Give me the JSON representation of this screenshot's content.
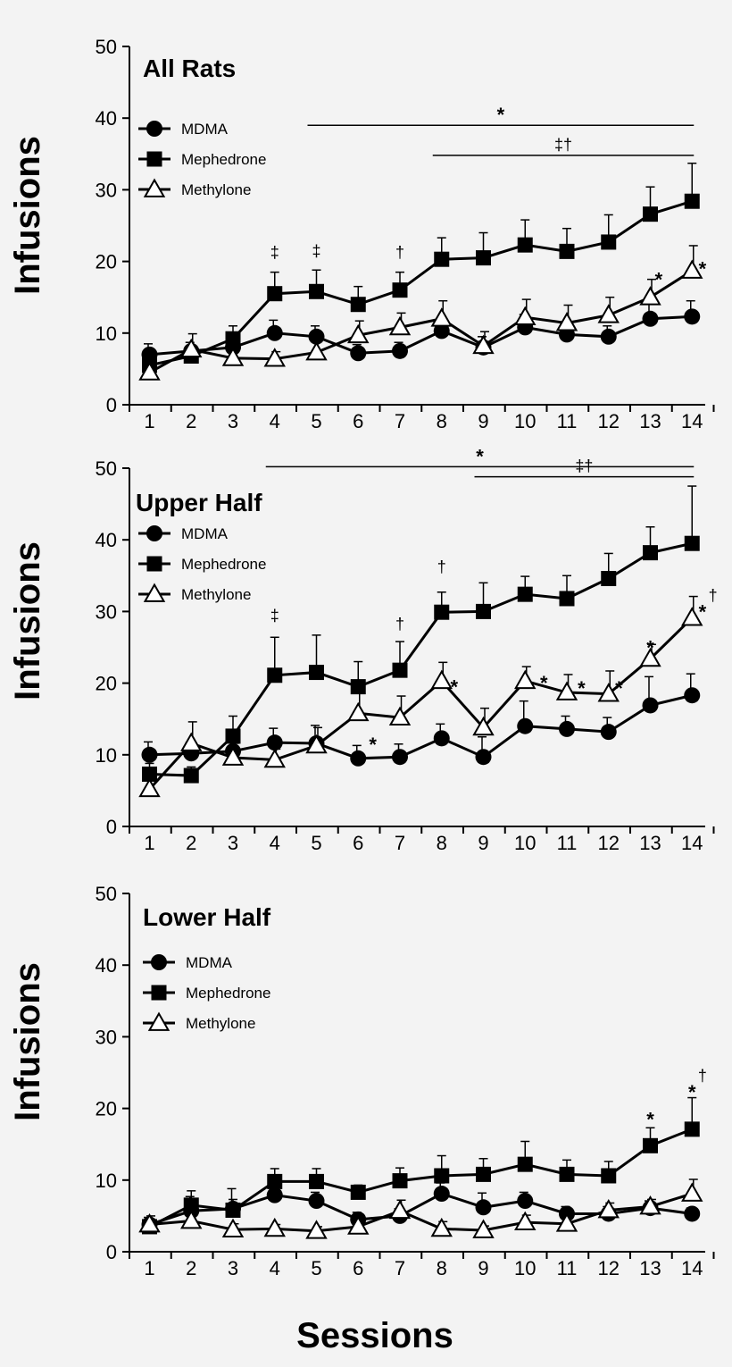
{
  "x_label": "Sessions",
  "y_label": "Infusions",
  "chart_data": [
    {
      "type": "line",
      "title": "All Rats",
      "xlabel": "Sessions",
      "ylabel": "Infusions",
      "ylim": [
        0,
        50
      ],
      "yticks": [
        0,
        10,
        20,
        30,
        40,
        50
      ],
      "x": [
        1,
        2,
        3,
        4,
        5,
        6,
        7,
        8,
        9,
        10,
        11,
        12,
        13,
        14
      ],
      "series": [
        {
          "name": "MDMA",
          "marker": "circle",
          "values": [
            7,
            7.5,
            8,
            10,
            9.5,
            7.2,
            7.5,
            10.3,
            8,
            10.8,
            9.8,
            9.5,
            12,
            12.3
          ],
          "err": [
            1.5,
            1.2,
            1.5,
            1.8,
            1.5,
            1.2,
            1.2,
            1.2,
            1.5,
            1.8,
            1.5,
            1.5,
            2.5,
            2.2
          ]
        },
        {
          "name": "Mephedrone",
          "marker": "square",
          "values": [
            5.5,
            6.8,
            9.2,
            15.5,
            15.8,
            14,
            16,
            20.3,
            20.5,
            22.3,
            21.4,
            22.7,
            26.6,
            28.4
          ],
          "err": [
            1.2,
            1.2,
            1.8,
            3.0,
            3.0,
            2.5,
            2.5,
            3.0,
            3.5,
            3.5,
            3.2,
            3.8,
            3.8,
            5.3
          ]
        },
        {
          "name": "Methylone",
          "marker": "triangle",
          "values": [
            4.5,
            7.7,
            6.5,
            6.4,
            7.3,
            9.7,
            10.8,
            12,
            8.2,
            12.2,
            11.4,
            12.5,
            15,
            18.7
          ],
          "err": [
            1.0,
            2.2,
            1.5,
            1.0,
            1.5,
            2.0,
            2.0,
            2.5,
            2.0,
            2.5,
            2.5,
            2.5,
            2.5,
            3.5
          ]
        }
      ],
      "annotations": [
        {
          "text": "‡",
          "x": 4,
          "y": 20.5
        },
        {
          "text": "‡",
          "x": 5,
          "y": 20.7
        },
        {
          "text": "†",
          "x": 7,
          "y": 20.5
        },
        {
          "text": "*",
          "x": 13.2,
          "y": 18
        },
        {
          "text": "*",
          "x": 14.25,
          "y": 19.5
        }
      ],
      "brackets": [
        {
          "text": "*",
          "from": 5,
          "to": 14,
          "y": 39
        },
        {
          "text": "‡†",
          "from": 8,
          "to": 14,
          "y": 34.8
        }
      ]
    },
    {
      "type": "line",
      "title": "Upper Half",
      "xlabel": "Sessions",
      "ylabel": "Infusions",
      "ylim": [
        0,
        50
      ],
      "yticks": [
        0,
        10,
        20,
        30,
        40,
        50
      ],
      "x": [
        1,
        2,
        3,
        4,
        5,
        6,
        7,
        8,
        9,
        10,
        11,
        12,
        13,
        14
      ],
      "series": [
        {
          "name": "MDMA",
          "marker": "circle",
          "values": [
            10,
            10.2,
            10.5,
            11.7,
            11.6,
            9.5,
            9.7,
            12.3,
            9.7,
            14,
            13.6,
            13.2,
            16.9,
            18.3
          ],
          "err": [
            1.8,
            1.5,
            1.5,
            2.0,
            2.5,
            1.8,
            1.8,
            2.0,
            2.8,
            3.5,
            1.8,
            2.0,
            4.0,
            3.0
          ]
        },
        {
          "name": "Mephedrone",
          "marker": "square",
          "values": [
            7.3,
            7.1,
            12.6,
            21.1,
            21.5,
            19.5,
            21.8,
            29.9,
            30,
            32.4,
            31.8,
            34.6,
            38.2,
            39.5
          ],
          "err": [
            1.5,
            1.2,
            2.8,
            5.3,
            5.2,
            3.5,
            4.0,
            2.8,
            4.0,
            2.5,
            3.2,
            3.5,
            3.6,
            8.0
          ]
        },
        {
          "name": "Methylone",
          "marker": "triangle",
          "values": [
            5.2,
            11.6,
            9.6,
            9.3,
            11.3,
            15.8,
            15.2,
            20.3,
            13.8,
            20.3,
            18.7,
            18.5,
            23.4,
            29.1
          ],
          "err": [
            1.8,
            3.0,
            2.0,
            1.5,
            2.5,
            3.5,
            3.0,
            2.6,
            2.7,
            2.0,
            2.5,
            3.2,
            2.0,
            3.0
          ]
        }
      ],
      "annotations": [
        {
          "text": "‡",
          "x": 4,
          "y": 28.7
        },
        {
          "text": "*",
          "x": 6.35,
          "y": 12
        },
        {
          "text": "†",
          "x": 7,
          "y": 27.5
        },
        {
          "text": "†",
          "x": 8,
          "y": 35.5
        },
        {
          "text": "*",
          "x": 8.3,
          "y": 20
        },
        {
          "text": "*",
          "x": 10.45,
          "y": 20.6
        },
        {
          "text": "*",
          "x": 11.35,
          "y": 19.8
        },
        {
          "text": "*",
          "x": 12.25,
          "y": 19.8
        },
        {
          "text": "*",
          "x": 13,
          "y": 25.5
        },
        {
          "text": "*",
          "x": 14.25,
          "y": 30.5
        },
        {
          "text": "†",
          "x": 14.5,
          "y": 31.5
        }
      ],
      "brackets": [
        {
          "text": "*",
          "from": 4,
          "to": 14,
          "y": 50.2
        },
        {
          "text": "‡†",
          "from": 9,
          "to": 14,
          "y": 48.8
        }
      ]
    },
    {
      "type": "line",
      "title": "Lower Half",
      "xlabel": "Sessions",
      "ylabel": "Infusions",
      "ylim": [
        0,
        50
      ],
      "yticks": [
        0,
        10,
        20,
        30,
        40,
        50
      ],
      "x": [
        1,
        2,
        3,
        4,
        5,
        6,
        7,
        8,
        9,
        10,
        11,
        12,
        13,
        14
      ],
      "series": [
        {
          "name": "MDMA",
          "marker": "circle",
          "values": [
            3.8,
            5.7,
            6,
            7.9,
            7.1,
            4.5,
            5,
            8.1,
            6.2,
            7.1,
            5.3,
            5.3,
            6.1,
            5.3
          ],
          "err": [
            1.0,
            2.0,
            2.8,
            1.8,
            1.2,
            1.0,
            1.0,
            1.5,
            2.0,
            1.2,
            1.0,
            1.0,
            1.0,
            0.8
          ]
        },
        {
          "name": "Mephedrone",
          "marker": "square",
          "values": [
            3.5,
            6.5,
            5.8,
            9.8,
            9.8,
            8.3,
            9.9,
            10.6,
            10.8,
            12.2,
            10.8,
            10.6,
            14.8,
            17.1
          ],
          "err": [
            1.0,
            2.0,
            1.5,
            1.8,
            1.8,
            1.0,
            1.8,
            2.8,
            2.2,
            3.2,
            2.0,
            2.0,
            2.5,
            4.4
          ]
        },
        {
          "name": "Methylone",
          "marker": "triangle",
          "values": [
            3.8,
            4.3,
            3.1,
            3.2,
            2.9,
            3.5,
            5.7,
            3.2,
            3,
            4.1,
            3.9,
            5.8,
            6.3,
            8.1
          ],
          "err": [
            1.2,
            2.0,
            0.8,
            0.6,
            0.6,
            1.0,
            1.5,
            1.0,
            0.6,
            1.0,
            1.0,
            1.0,
            1.0,
            2.0
          ]
        }
      ],
      "annotations": [
        {
          "text": "*",
          "x": 13,
          "y": 19
        },
        {
          "text": "*",
          "x": 14,
          "y": 22.8
        },
        {
          "text": "†",
          "x": 14.25,
          "y": 23.8
        }
      ],
      "brackets": []
    }
  ]
}
